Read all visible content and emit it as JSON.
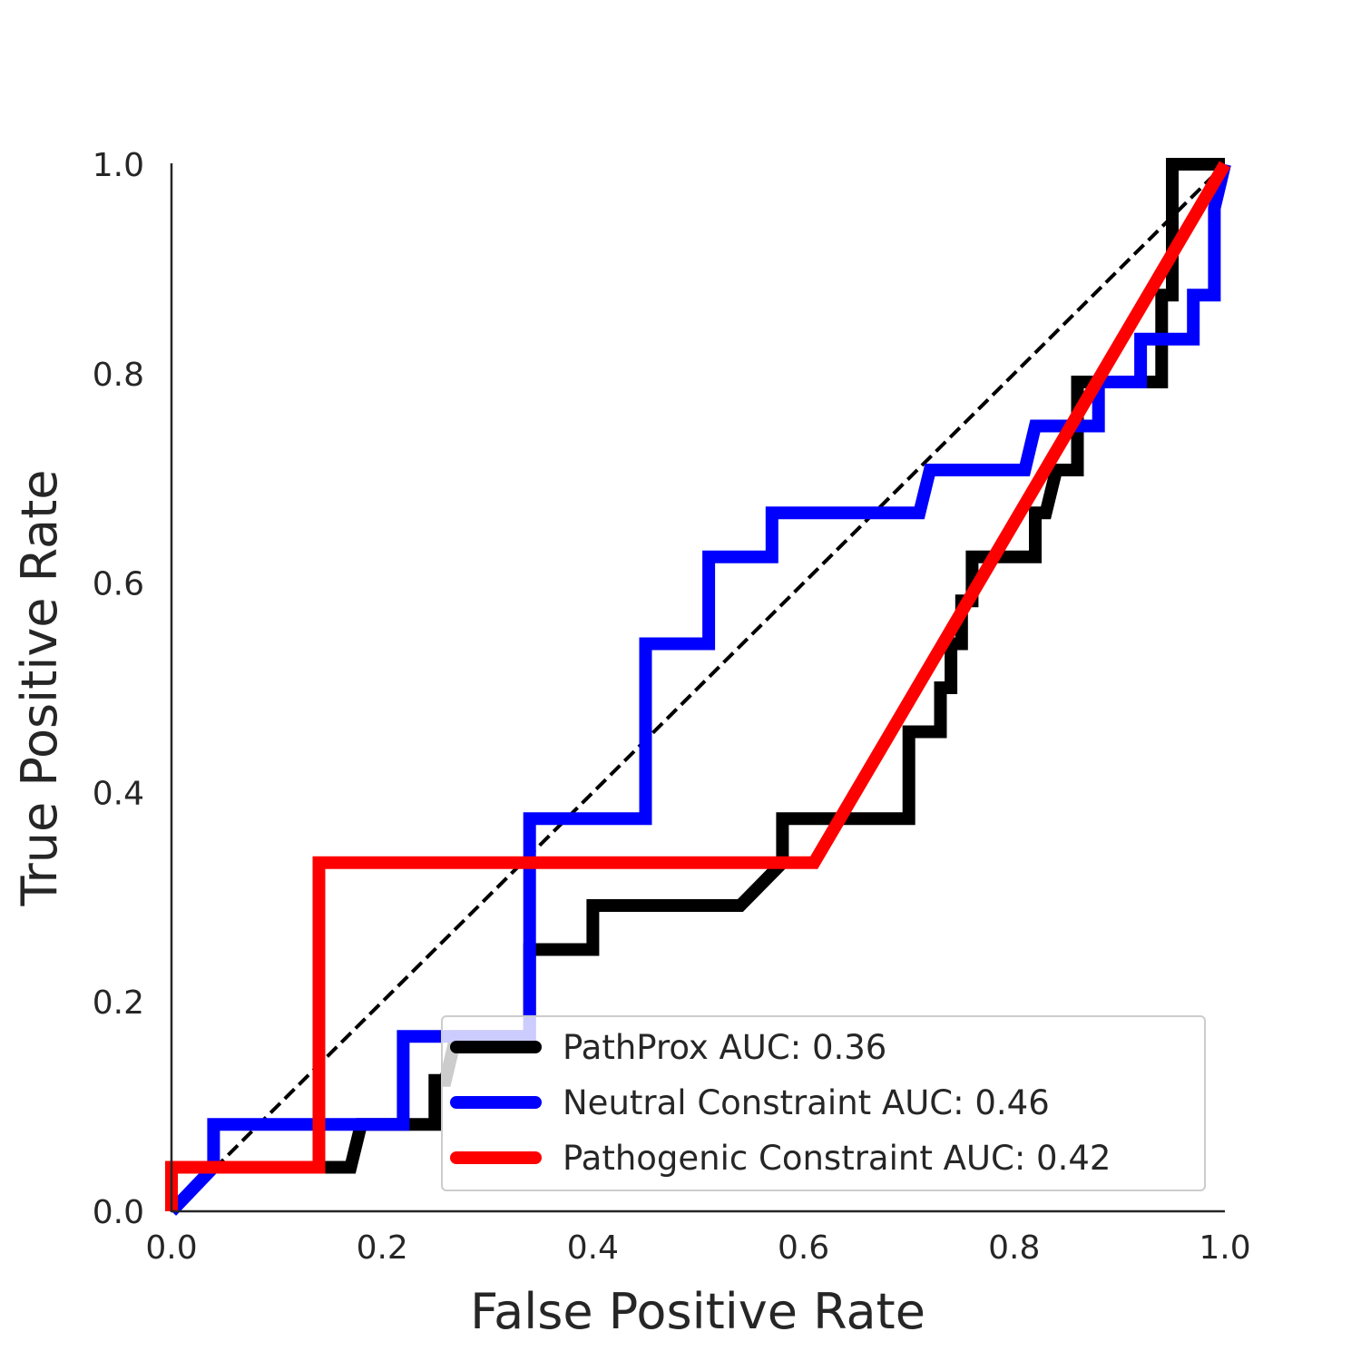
{
  "chart_data": {
    "type": "line",
    "title": "",
    "xlabel": "False Positive Rate",
    "ylabel": "True Positive Rate",
    "xlim": [
      0.0,
      1.0
    ],
    "ylim": [
      0.0,
      1.0
    ],
    "xticks": [
      "0.0",
      "0.2",
      "0.4",
      "0.6",
      "0.8",
      "1.0"
    ],
    "yticks": [
      "0.0",
      "0.2",
      "0.4",
      "0.6",
      "0.8",
      "1.0"
    ],
    "grid": false,
    "legend_position": "lower-right",
    "reference_line": {
      "style": "dashed",
      "color": "#000000",
      "x": [
        0,
        1
      ],
      "y": [
        0,
        1
      ]
    },
    "series": [
      {
        "name": "PathProx AUC:  0.36",
        "color": "#000000",
        "x": [
          0.0,
          0.0,
          0.17,
          0.18,
          0.23,
          0.25,
          0.25,
          0.26,
          0.27,
          0.34,
          0.34,
          0.4,
          0.4,
          0.54,
          0.58,
          0.58,
          0.7,
          0.7,
          0.73,
          0.73,
          0.74,
          0.74,
          0.75,
          0.75,
          0.76,
          0.76,
          0.82,
          0.82,
          0.83,
          0.84,
          0.86,
          0.86,
          0.94,
          0.94,
          0.95,
          0.95,
          1.0
        ],
        "y": [
          0.0,
          0.042,
          0.042,
          0.083,
          0.083,
          0.083,
          0.125,
          0.125,
          0.167,
          0.167,
          0.25,
          0.25,
          0.292,
          0.292,
          0.333,
          0.375,
          0.375,
          0.458,
          0.458,
          0.5,
          0.5,
          0.542,
          0.542,
          0.583,
          0.583,
          0.625,
          0.625,
          0.667,
          0.667,
          0.708,
          0.708,
          0.792,
          0.792,
          0.875,
          0.875,
          1.0,
          1.0
        ]
      },
      {
        "name": "Neutral Constraint AUC:  0.46",
        "color": "#0000ff",
        "x": [
          0.0,
          0.04,
          0.04,
          0.22,
          0.22,
          0.34,
          0.34,
          0.45,
          0.45,
          0.51,
          0.51,
          0.57,
          0.57,
          0.71,
          0.72,
          0.81,
          0.82,
          0.88,
          0.88,
          0.92,
          0.92,
          0.97,
          0.97,
          0.99,
          0.99,
          1.0
        ],
        "y": [
          0.0,
          0.042,
          0.083,
          0.083,
          0.167,
          0.167,
          0.375,
          0.375,
          0.542,
          0.542,
          0.625,
          0.625,
          0.667,
          0.667,
          0.708,
          0.708,
          0.75,
          0.75,
          0.792,
          0.792,
          0.833,
          0.833,
          0.875,
          0.875,
          0.958,
          1.0
        ]
      },
      {
        "name": "Pathogenic Constraint AUC:  0.42",
        "color": "#ff0000",
        "x": [
          0.0,
          0.0,
          0.14,
          0.14,
          0.61,
          1.0
        ],
        "y": [
          0.0,
          0.042,
          0.042,
          0.333,
          0.333,
          1.0
        ]
      }
    ]
  }
}
